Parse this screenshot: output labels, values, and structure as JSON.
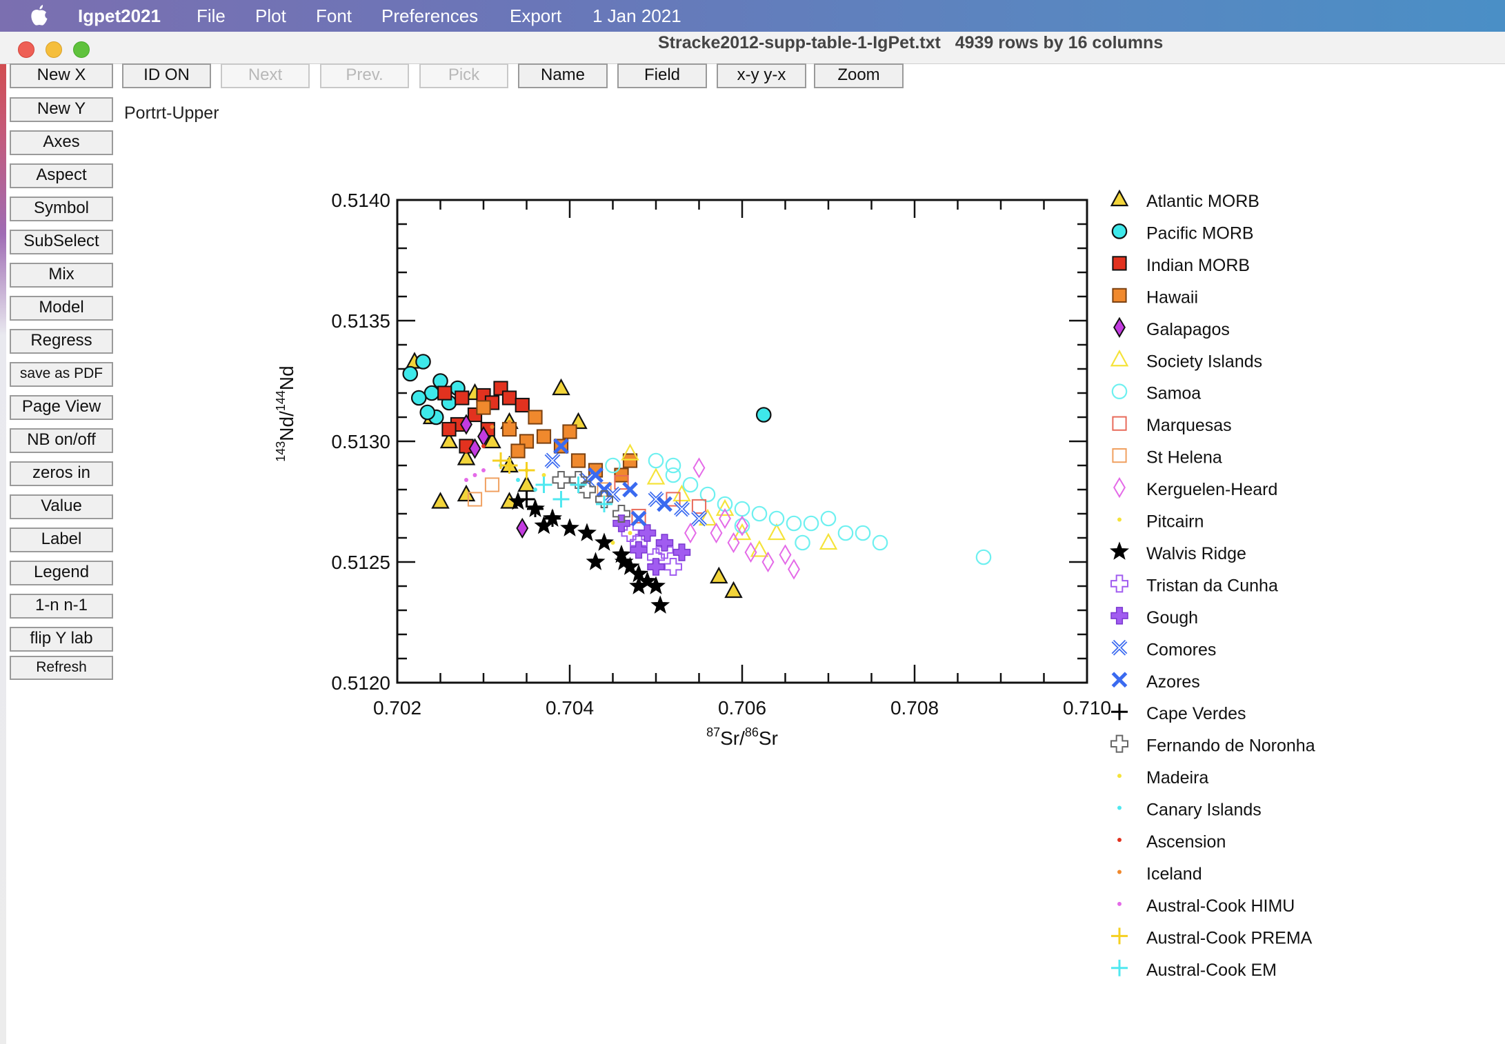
{
  "menubar": {
    "app_name": "Igpet2021",
    "items": [
      "File",
      "Plot",
      "Font",
      "Preferences",
      "Export"
    ],
    "date": "1 Jan 2021"
  },
  "window": {
    "title": "Stracke2012-supp-table-1-IgPet.txt",
    "info": "4939 rows by 16 columns"
  },
  "toolbar": [
    {
      "label": "New X",
      "enabled": true
    },
    {
      "label": "ID ON",
      "enabled": true
    },
    {
      "label": "Next",
      "enabled": false
    },
    {
      "label": "Prev.",
      "enabled": false
    },
    {
      "label": "Pick",
      "enabled": false
    },
    {
      "label": "Name",
      "enabled": true
    },
    {
      "label": "Field",
      "enabled": true
    },
    {
      "label": "x-y y-x",
      "enabled": true
    },
    {
      "label": "Zoom",
      "enabled": true
    }
  ],
  "side_buttons": [
    "New Y",
    "Axes",
    "Aspect",
    "Symbol",
    "SubSelect",
    "Mix",
    "Model",
    "Regress",
    "save as PDF",
    "Page View",
    "NB on/off",
    "zeros in",
    "Value",
    "Label",
    "Legend",
    "1-n n-1",
    "flip Y lab",
    "Refresh"
  ],
  "plot_label": "Portrt-Upper",
  "chart_data": {
    "type": "scatter",
    "xlabel": {
      "sup1": "87",
      "main1": "Sr/",
      "sup2": "86",
      "main2": "Sr"
    },
    "ylabel": {
      "sup1": "143",
      "main1": "Nd/",
      "sup2": "144",
      "main2": "Nd"
    },
    "xlim": [
      0.702,
      0.71
    ],
    "ylim": [
      0.512,
      0.514
    ],
    "xticks": [
      "0.702",
      "0.704",
      "0.706",
      "0.708",
      "0.710"
    ],
    "yticks": [
      "0.5120",
      "0.5125",
      "0.5130",
      "0.5135",
      "0.5140"
    ],
    "legend_position": "right",
    "series": [
      {
        "name": "Atlantic MORB",
        "marker": "triangle",
        "fill": "#f2d43a",
        "stroke": "#111111",
        "points": [
          [
            0.7022,
            0.51333
          ],
          [
            0.7024,
            0.5131
          ],
          [
            0.7026,
            0.513
          ],
          [
            0.7028,
            0.51293
          ],
          [
            0.7029,
            0.5132
          ],
          [
            0.7031,
            0.513
          ],
          [
            0.7033,
            0.5129
          ],
          [
            0.7035,
            0.51282
          ],
          [
            0.7025,
            0.51275
          ],
          [
            0.7028,
            0.51278
          ],
          [
            0.7041,
            0.51308
          ],
          [
            0.7039,
            0.51322
          ],
          [
            0.7033,
            0.51308
          ],
          [
            0.70573,
            0.51244
          ],
          [
            0.7059,
            0.51238
          ],
          [
            0.7033,
            0.51275
          ]
        ]
      },
      {
        "name": "Pacific MORB",
        "marker": "circle",
        "fill": "#3ee8ea",
        "stroke": "#111111",
        "points": [
          [
            0.70215,
            0.51328
          ],
          [
            0.7023,
            0.51333
          ],
          [
            0.7024,
            0.5132
          ],
          [
            0.7025,
            0.51325
          ],
          [
            0.7026,
            0.51316
          ],
          [
            0.70245,
            0.5131
          ],
          [
            0.70235,
            0.51312
          ],
          [
            0.7027,
            0.51322
          ],
          [
            0.70225,
            0.51318
          ],
          [
            0.70625,
            0.51311
          ]
        ]
      },
      {
        "name": "Indian MORB",
        "marker": "square",
        "fill": "#e2321f",
        "stroke": "#111111",
        "points": [
          [
            0.70255,
            0.5132
          ],
          [
            0.70275,
            0.51318
          ],
          [
            0.703,
            0.51319
          ],
          [
            0.7031,
            0.51316
          ],
          [
            0.7029,
            0.51311
          ],
          [
            0.7027,
            0.51307
          ],
          [
            0.7032,
            0.51322
          ],
          [
            0.7033,
            0.51318
          ],
          [
            0.7026,
            0.51305
          ],
          [
            0.7028,
            0.51298
          ],
          [
            0.70305,
            0.51305
          ],
          [
            0.70345,
            0.51315
          ]
        ]
      },
      {
        "name": "Hawaii",
        "marker": "square",
        "fill": "#f0892d",
        "stroke": "#7a4010",
        "points": [
          [
            0.7033,
            0.51305
          ],
          [
            0.7035,
            0.513
          ],
          [
            0.7037,
            0.51302
          ],
          [
            0.7039,
            0.51298
          ],
          [
            0.7041,
            0.51292
          ],
          [
            0.7043,
            0.51288
          ],
          [
            0.7036,
            0.5131
          ],
          [
            0.704,
            0.51304
          ],
          [
            0.7034,
            0.51296
          ],
          [
            0.7046,
            0.51286
          ],
          [
            0.7047,
            0.51292
          ],
          [
            0.703,
            0.51314
          ]
        ]
      },
      {
        "name": "Galapagos",
        "marker": "diamond",
        "fill": "#c33be0",
        "stroke": "#111111",
        "points": [
          [
            0.7028,
            0.51307
          ],
          [
            0.703,
            0.51302
          ],
          [
            0.70345,
            0.51264
          ],
          [
            0.7029,
            0.51297
          ]
        ]
      },
      {
        "name": "Society Islands",
        "marker": "triangle",
        "fill": "none",
        "stroke": "#f5e33a",
        "points": [
          [
            0.7047,
            0.51295
          ],
          [
            0.705,
            0.51285
          ],
          [
            0.7056,
            0.51268
          ],
          [
            0.706,
            0.51262
          ],
          [
            0.7062,
            0.51255
          ],
          [
            0.7064,
            0.51262
          ],
          [
            0.707,
            0.51258
          ],
          [
            0.7058,
            0.51272
          ],
          [
            0.7053,
            0.51278
          ]
        ]
      },
      {
        "name": "Samoa",
        "marker": "circle",
        "fill": "none",
        "stroke": "#6ef0f0",
        "points": [
          [
            0.705,
            0.51292
          ],
          [
            0.7052,
            0.51286
          ],
          [
            0.7054,
            0.51282
          ],
          [
            0.7056,
            0.51278
          ],
          [
            0.7058,
            0.51274
          ],
          [
            0.706,
            0.51272
          ],
          [
            0.7062,
            0.5127
          ],
          [
            0.7064,
            0.51268
          ],
          [
            0.7066,
            0.51266
          ],
          [
            0.7068,
            0.51266
          ],
          [
            0.707,
            0.51268
          ],
          [
            0.7072,
            0.51262
          ],
          [
            0.7074,
            0.51262
          ],
          [
            0.7076,
            0.51258
          ],
          [
            0.7088,
            0.51252
          ],
          [
            0.7067,
            0.51258
          ],
          [
            0.706,
            0.51265
          ],
          [
            0.7052,
            0.5129
          ],
          [
            0.7045,
            0.5129
          ]
        ]
      },
      {
        "name": "Marquesas",
        "marker": "square",
        "fill": "none",
        "stroke": "#e86a5a",
        "points": [
          [
            0.7046,
            0.51283
          ],
          [
            0.7052,
            0.51276
          ],
          [
            0.7055,
            0.51273
          ],
          [
            0.7048,
            0.51269
          ]
        ]
      },
      {
        "name": "St Helena",
        "marker": "square",
        "fill": "none",
        "stroke": "#f0a060",
        "points": [
          [
            0.7029,
            0.51276
          ],
          [
            0.7031,
            0.51282
          ],
          [
            0.7044,
            0.5128
          ]
        ]
      },
      {
        "name": "Kerguelen-Heard",
        "marker": "diamond",
        "fill": "none",
        "stroke": "#e46ae8",
        "points": [
          [
            0.7055,
            0.51289
          ],
          [
            0.7057,
            0.51262
          ],
          [
            0.7059,
            0.51258
          ],
          [
            0.7061,
            0.51254
          ],
          [
            0.7063,
            0.5125
          ],
          [
            0.7065,
            0.51253
          ],
          [
            0.7066,
            0.51247
          ],
          [
            0.706,
            0.51265
          ],
          [
            0.7058,
            0.51268
          ],
          [
            0.7054,
            0.51262
          ]
        ]
      },
      {
        "name": "Pitcairn",
        "marker": "dot",
        "fill": "#f5e33a",
        "stroke": "#f5e33a",
        "points": [
          [
            0.7045,
            0.51258
          ],
          [
            0.7047,
            0.51262
          ]
        ]
      },
      {
        "name": "Walvis Ridge",
        "marker": "star",
        "fill": "#000000",
        "stroke": "#000000",
        "points": [
          [
            0.7034,
            0.51275
          ],
          [
            0.7036,
            0.51272
          ],
          [
            0.7038,
            0.51268
          ],
          [
            0.704,
            0.51264
          ],
          [
            0.7042,
            0.51262
          ],
          [
            0.7044,
            0.51258
          ],
          [
            0.7046,
            0.51253
          ],
          [
            0.7047,
            0.51248
          ],
          [
            0.7048,
            0.51245
          ],
          [
            0.7049,
            0.51242
          ],
          [
            0.705,
            0.5124
          ],
          [
            0.70463,
            0.5125
          ],
          [
            0.7043,
            0.5125
          ],
          [
            0.70505,
            0.51232
          ],
          [
            0.7048,
            0.5124
          ],
          [
            0.7037,
            0.51265
          ]
        ]
      },
      {
        "name": "Tristan da Cunha",
        "marker": "plus-open",
        "fill": "none",
        "stroke": "#a15cf0",
        "points": [
          [
            0.7048,
            0.51258
          ],
          [
            0.705,
            0.51252
          ],
          [
            0.7052,
            0.51248
          ],
          [
            0.7051,
            0.51255
          ],
          [
            0.7047,
            0.51262
          ]
        ]
      },
      {
        "name": "Gough",
        "marker": "plus-filled",
        "fill": "#a15cf0",
        "stroke": "#7a38d0",
        "points": [
          [
            0.7049,
            0.51262
          ],
          [
            0.7051,
            0.51258
          ],
          [
            0.7053,
            0.51254
          ],
          [
            0.705,
            0.51248
          ],
          [
            0.7048,
            0.51255
          ],
          [
            0.7046,
            0.51266
          ]
        ]
      },
      {
        "name": "Comores",
        "marker": "x-open",
        "fill": "none",
        "stroke": "#3a6af0",
        "points": [
          [
            0.7038,
            0.51292
          ],
          [
            0.7042,
            0.51284
          ],
          [
            0.7045,
            0.51278
          ],
          [
            0.705,
            0.51276
          ],
          [
            0.7053,
            0.51272
          ],
          [
            0.7055,
            0.51268
          ]
        ]
      },
      {
        "name": "Azores",
        "marker": "x-filled",
        "fill": "#3a6af0",
        "stroke": "#3a6af0",
        "points": [
          [
            0.7039,
            0.51298
          ],
          [
            0.7043,
            0.51286
          ],
          [
            0.7047,
            0.5128
          ],
          [
            0.7051,
            0.51274
          ],
          [
            0.7048,
            0.51268
          ],
          [
            0.7044,
            0.5128
          ]
        ]
      },
      {
        "name": "Cape Verdes",
        "marker": "plus",
        "fill": "#000000",
        "stroke": "#000000",
        "points": [
          [
            0.7036,
            0.51272
          ],
          [
            0.7038,
            0.51268
          ],
          [
            0.7035,
            0.51276
          ]
        ]
      },
      {
        "name": "Fernando de Noronha",
        "marker": "plus-open",
        "fill": "none",
        "stroke": "#666666",
        "points": [
          [
            0.7039,
            0.51284
          ],
          [
            0.7041,
            0.51284
          ],
          [
            0.7044,
            0.51276
          ],
          [
            0.7046,
            0.5127
          ],
          [
            0.7042,
            0.5128
          ]
        ]
      },
      {
        "name": "Madeira",
        "marker": "dot",
        "fill": "#f5e33a",
        "stroke": "#f5e33a",
        "points": [
          [
            0.7033,
            0.51292
          ],
          [
            0.7035,
            0.51288
          ],
          [
            0.7037,
            0.51286
          ]
        ]
      },
      {
        "name": "Canary Islands",
        "marker": "dot",
        "fill": "#50e8f0",
        "stroke": "#50e8f0",
        "points": [
          [
            0.7032,
            0.5129
          ],
          [
            0.7034,
            0.51284
          ],
          [
            0.7036,
            0.5128
          ]
        ]
      },
      {
        "name": "Ascension",
        "marker": "dot",
        "fill": "#e2321f",
        "stroke": "#e2321f",
        "points": [
          [
            0.7028,
            0.51296
          ],
          [
            0.703,
            0.51298
          ]
        ]
      },
      {
        "name": "Iceland",
        "marker": "dot",
        "fill": "#f0892d",
        "stroke": "#f0892d",
        "points": [
          [
            0.7031,
            0.51306
          ],
          [
            0.7033,
            0.51308
          ]
        ]
      },
      {
        "name": "Austral-Cook HIMU",
        "marker": "dot",
        "fill": "#e46ae8",
        "stroke": "#e46ae8",
        "points": [
          [
            0.7029,
            0.51286
          ],
          [
            0.7028,
            0.51284
          ],
          [
            0.703,
            0.51288
          ]
        ]
      },
      {
        "name": "Austral-Cook PREMA",
        "marker": "plus",
        "fill": "#f5d020",
        "stroke": "#f5d020",
        "points": [
          [
            0.7033,
            0.5129
          ],
          [
            0.7035,
            0.51288
          ],
          [
            0.7032,
            0.51292
          ]
        ]
      },
      {
        "name": "Austral-Cook EM",
        "marker": "plus",
        "fill": "#50e8f0",
        "stroke": "#50e8f0",
        "points": [
          [
            0.7037,
            0.51282
          ],
          [
            0.7041,
            0.51282
          ],
          [
            0.7044,
            0.51274
          ],
          [
            0.7039,
            0.51276
          ]
        ]
      }
    ]
  }
}
